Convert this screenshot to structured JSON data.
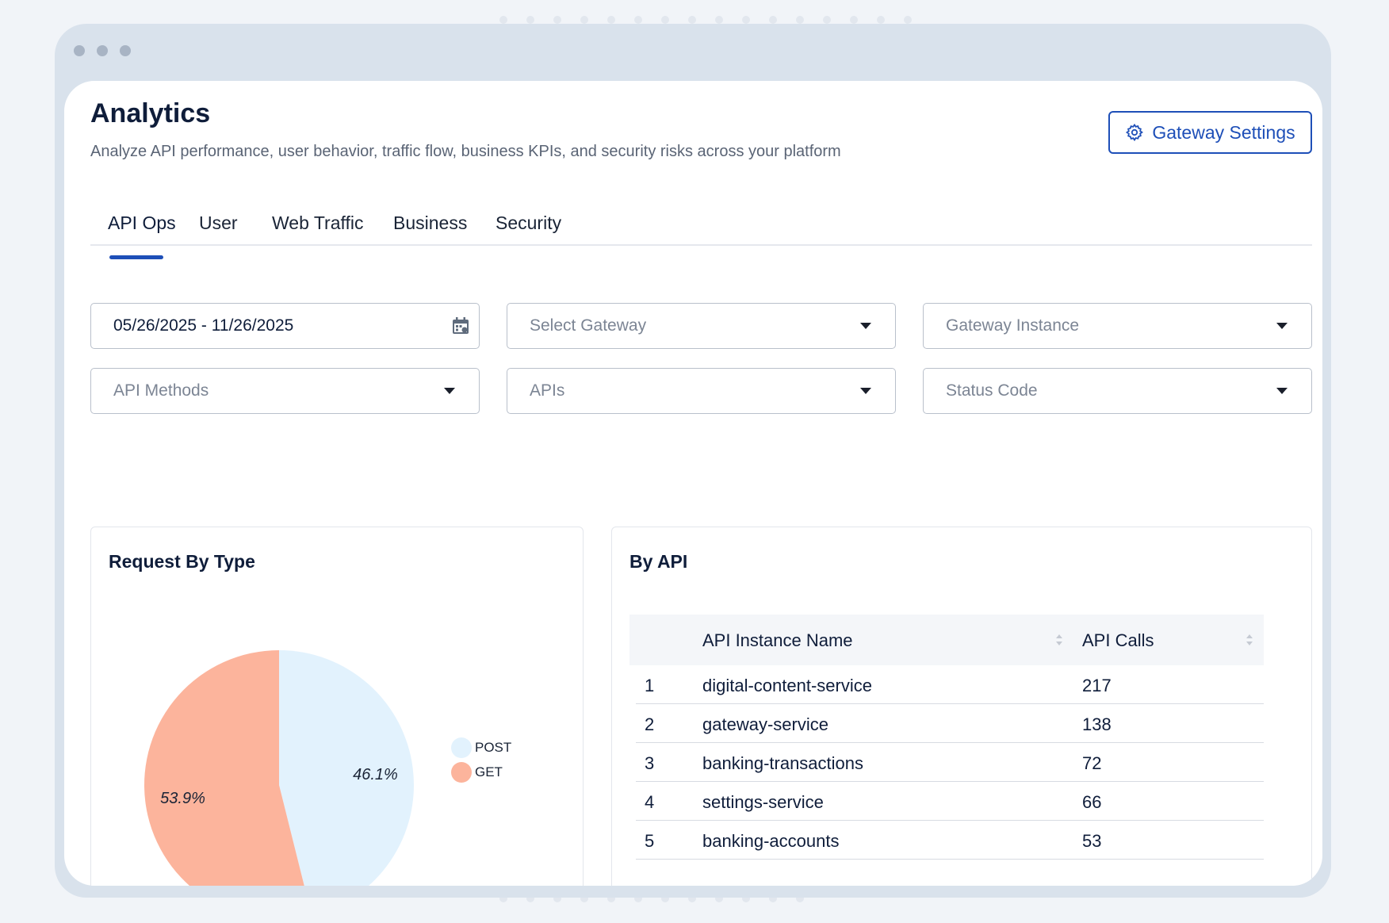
{
  "header": {
    "title": "Analytics",
    "subtitle": "Analyze API performance, user behavior, traffic flow, business KPIs, and security risks across your platform",
    "settings_button": "Gateway Settings",
    "settings_icon": "gear-icon"
  },
  "tabs": [
    {
      "label": "API Ops",
      "active": true
    },
    {
      "label": "User",
      "active": false
    },
    {
      "label": "Web Traffic",
      "active": false
    },
    {
      "label": "Business",
      "active": false
    },
    {
      "label": "Security",
      "active": false
    }
  ],
  "filters": {
    "date_range": "05/26/2025 - 11/26/2025",
    "gateway_placeholder": "Select Gateway",
    "instance_placeholder": "Gateway Instance",
    "methods_placeholder": "API Methods",
    "apis_placeholder": "APIs",
    "status_placeholder": "Status Code"
  },
  "request_card": {
    "title": "Request By Type"
  },
  "chart_data": {
    "type": "pie",
    "title": "Request By Type",
    "slices": [
      {
        "label": "POST",
        "value": 46.1,
        "display": "46.1%",
        "color": "#e2f2fd"
      },
      {
        "label": "GET",
        "value": 53.9,
        "display": "53.9%",
        "color": "#fcb49c"
      }
    ],
    "legend_position": "right"
  },
  "api_card": {
    "title": "By API",
    "columns": [
      "API Instance Name",
      "API Calls"
    ],
    "rows": [
      {
        "rank": "1",
        "name": "digital-content-service",
        "calls": "217"
      },
      {
        "rank": "2",
        "name": "gateway-service",
        "calls": "138"
      },
      {
        "rank": "3",
        "name": "banking-transactions",
        "calls": "72"
      },
      {
        "rank": "4",
        "name": "settings-service",
        "calls": "66"
      },
      {
        "rank": "5",
        "name": "banking-accounts",
        "calls": "53"
      }
    ]
  },
  "colors": {
    "accent": "#1e4fb8",
    "post": "#e2f2fd",
    "get": "#fcb49c"
  }
}
